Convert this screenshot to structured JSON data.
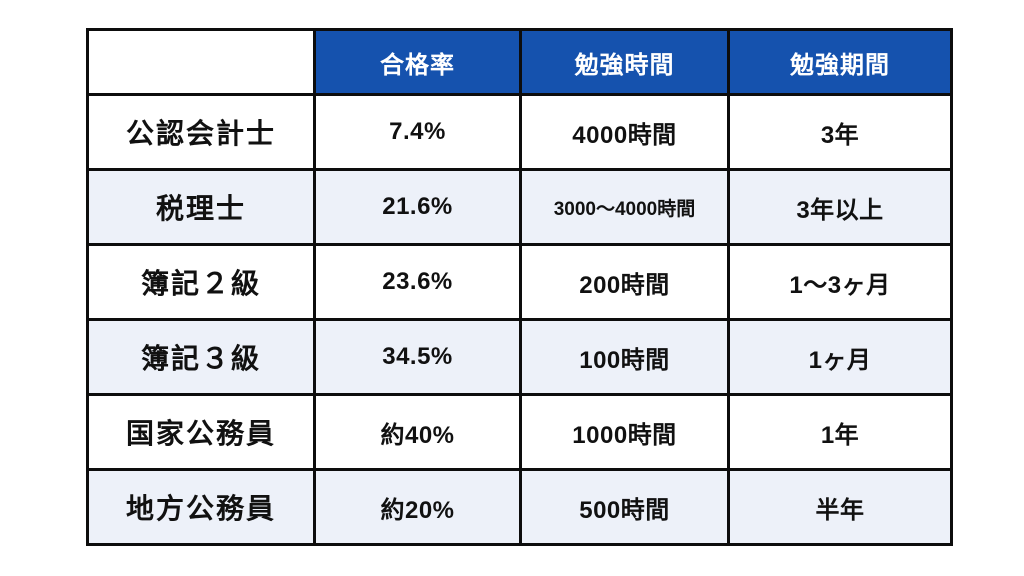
{
  "chart_data": {
    "type": "table",
    "title": "",
    "columns": [
      "",
      "合格率",
      "勉強時間",
      "勉強期間"
    ],
    "rows": [
      [
        "公認会計士",
        "7.4%",
        "4000時間",
        "3年"
      ],
      [
        "税理士",
        "21.6%",
        "3000〜4000時間",
        "3年以上"
      ],
      [
        "簿記２級",
        "23.6%",
        "200時間",
        "1〜3ヶ月"
      ],
      [
        "簿記３級",
        "34.5%",
        "100時間",
        "1ヶ月"
      ],
      [
        "国家公務員",
        "約40%",
        "1000時間",
        "1年"
      ],
      [
        "地方公務員",
        "約20%",
        "500時間",
        "半年"
      ]
    ],
    "colors": {
      "header_bg": "#1552ae",
      "header_text": "#ffffff",
      "row_bg": "#ffffff",
      "row_alt_bg": "#edf1f9",
      "border": "#0d0d0d",
      "text": "#111111"
    }
  }
}
